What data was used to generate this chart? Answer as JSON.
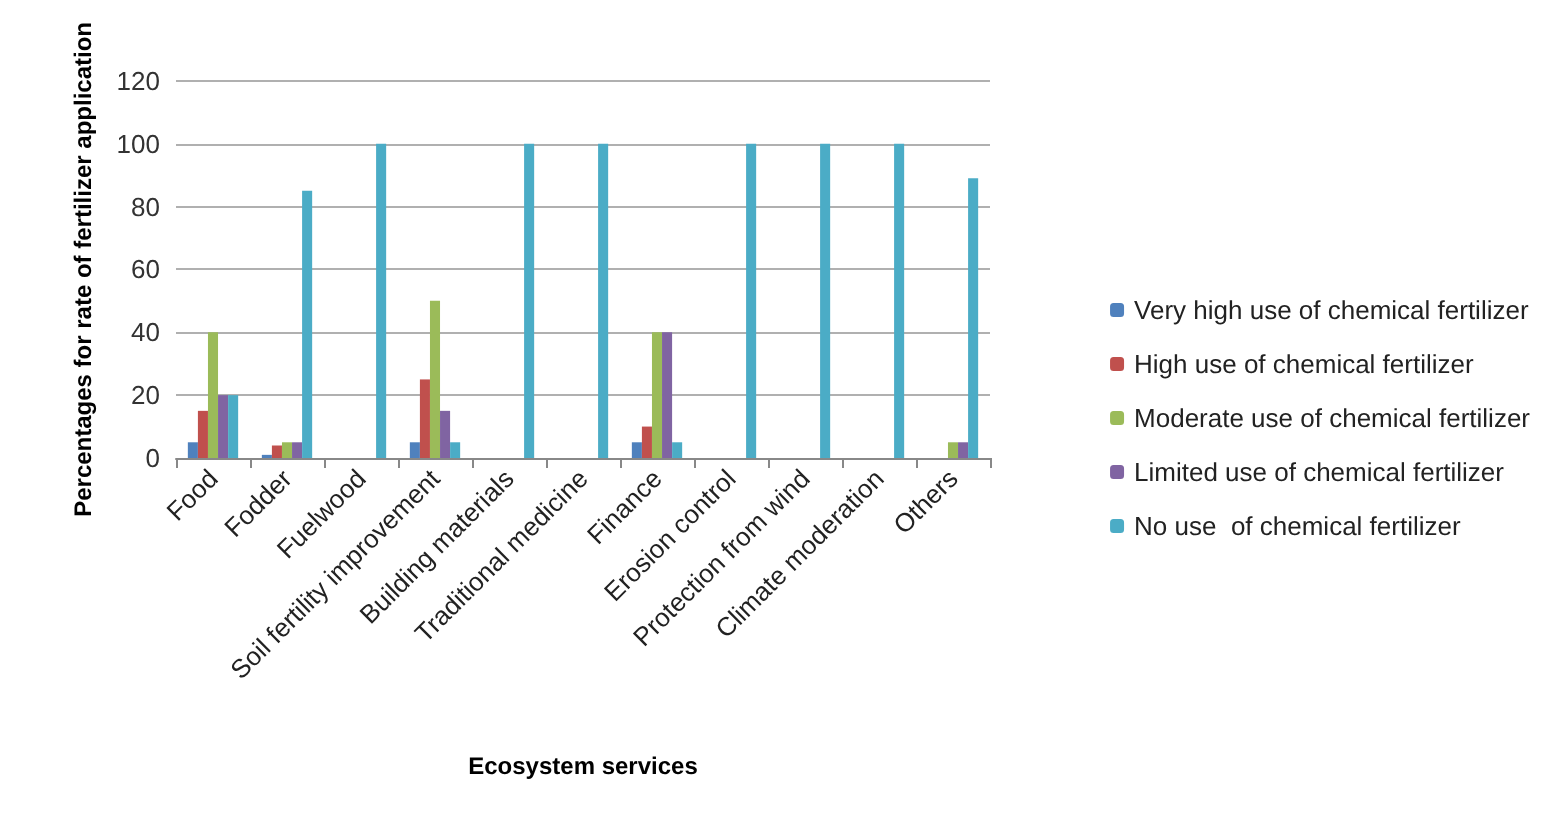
{
  "chart_data": {
    "type": "bar",
    "xlabel": "Ecosystem services",
    "ylabel": "Percentages for rate of fertilizer application",
    "categories": [
      "Food",
      "Fodder",
      "Fuelwood",
      "Soil fertility improvement",
      "Building materials",
      "Traditional medicine",
      "Finance",
      "Erosion control",
      "Protection from wind",
      "Climate moderation",
      "Others"
    ],
    "series": [
      {
        "name": "Very high use of chemical fertilizer",
        "color": "#4f81bd",
        "values": [
          5,
          1,
          null,
          5,
          null,
          null,
          5,
          null,
          null,
          null,
          null
        ]
      },
      {
        "name": "High use of chemical fertilizer",
        "color": "#c0504d",
        "values": [
          15,
          4,
          null,
          25,
          null,
          null,
          10,
          null,
          null,
          null,
          null
        ]
      },
      {
        "name": "Moderate use of chemical fertilizer",
        "color": "#9bbb59",
        "values": [
          40,
          5,
          null,
          50,
          null,
          null,
          40,
          null,
          null,
          null,
          5
        ]
      },
      {
        "name": "Limited use of chemical fertilizer",
        "color": "#8064a2",
        "values": [
          20,
          5,
          null,
          15,
          null,
          null,
          40,
          null,
          null,
          null,
          5
        ]
      },
      {
        "name": "No use  of chemical fertilizer",
        "color": "#4bacc6",
        "values": [
          20,
          85,
          100,
          5,
          100,
          100,
          5,
          100,
          100,
          100,
          89
        ]
      }
    ],
    "ylim": [
      0,
      120
    ],
    "yticks": [
      0,
      20,
      40,
      60,
      80,
      100,
      120
    ],
    "grid": "y",
    "legend": "right"
  }
}
